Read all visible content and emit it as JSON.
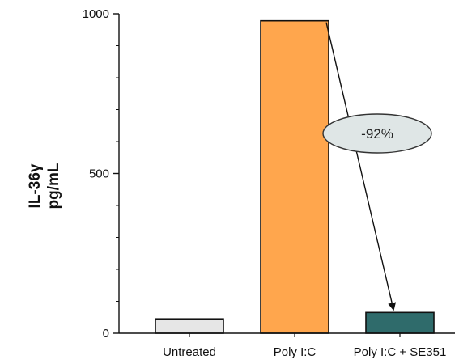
{
  "chart_data": {
    "type": "bar",
    "categories": [
      "Untreated",
      "Poly I:C",
      "Poly I:C + SE351"
    ],
    "values": [
      45,
      978,
      65
    ],
    "ylabel_line1": "IL-36γ",
    "ylabel_line2": "pg/mL",
    "yticks": [
      0,
      500,
      1000
    ],
    "ylim": [
      0,
      1000
    ],
    "bar_colors": [
      "#e6e6e6",
      "#ffa64d",
      "#2f6b6b"
    ],
    "annotation": {
      "text": "-92%",
      "color": "#dfe6e6"
    }
  }
}
